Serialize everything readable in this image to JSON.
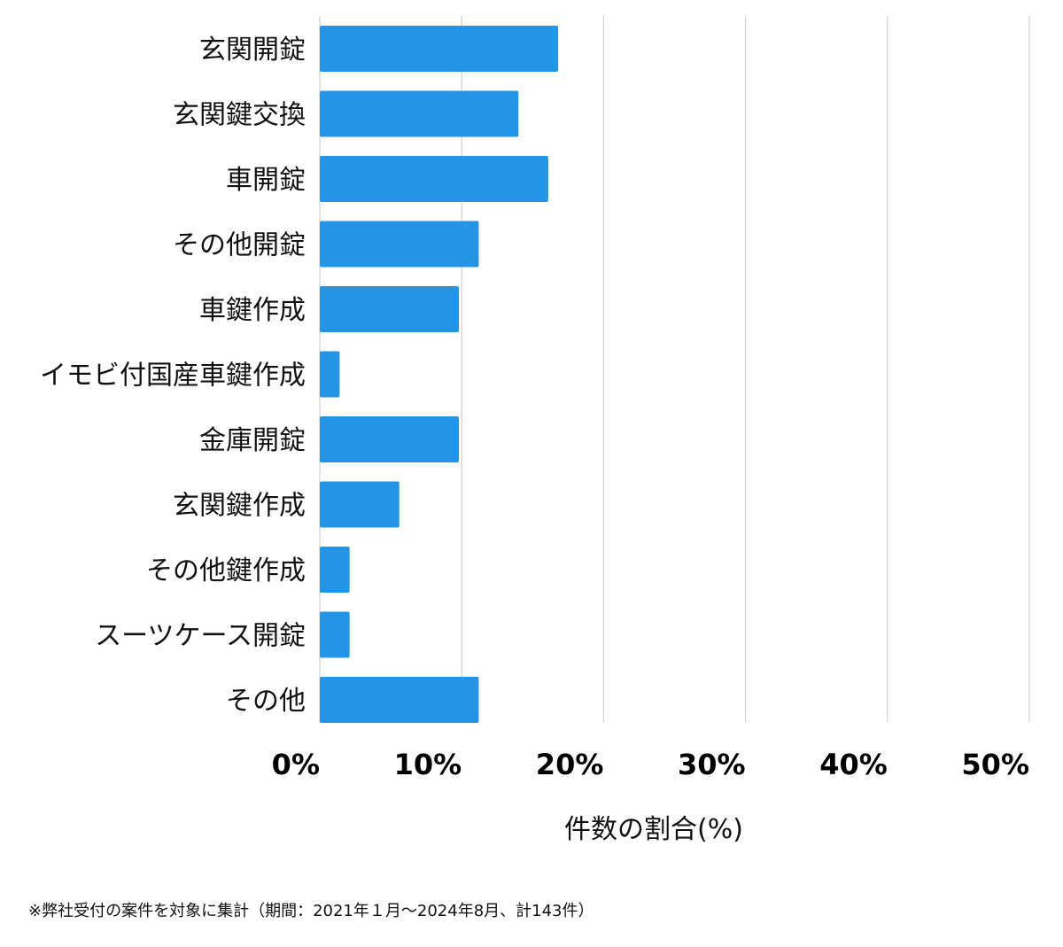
{
  "chart_data": {
    "type": "bar",
    "orientation": "horizontal",
    "categories": [
      "玄関開錠",
      "玄関鍵交換",
      "車開錠",
      "その他開錠",
      "車鍵作成",
      "イモビ付国産車鍵作成",
      "金庫開錠",
      "玄関鍵作成",
      "その他鍵作成",
      "スーツケース開錠",
      "その他"
    ],
    "values": [
      16.8,
      14.0,
      16.1,
      11.2,
      9.8,
      1.4,
      9.8,
      5.6,
      2.1,
      2.1,
      11.2
    ],
    "xlabel": "件数の割合(%)",
    "ylabel": "",
    "xlim": [
      0,
      50
    ],
    "ticks": [
      0,
      10,
      20,
      30,
      40,
      50
    ],
    "tick_labels": [
      "0%",
      "10%",
      "20%",
      "30%",
      "40%",
      "50%"
    ],
    "grid": true,
    "bar_color": "#2495e6",
    "grid_color": "#d0d0d0"
  },
  "footnote": "※弊社受付の案件を対象に集計（期間：2021年１月〜2024年8月、計143件）"
}
